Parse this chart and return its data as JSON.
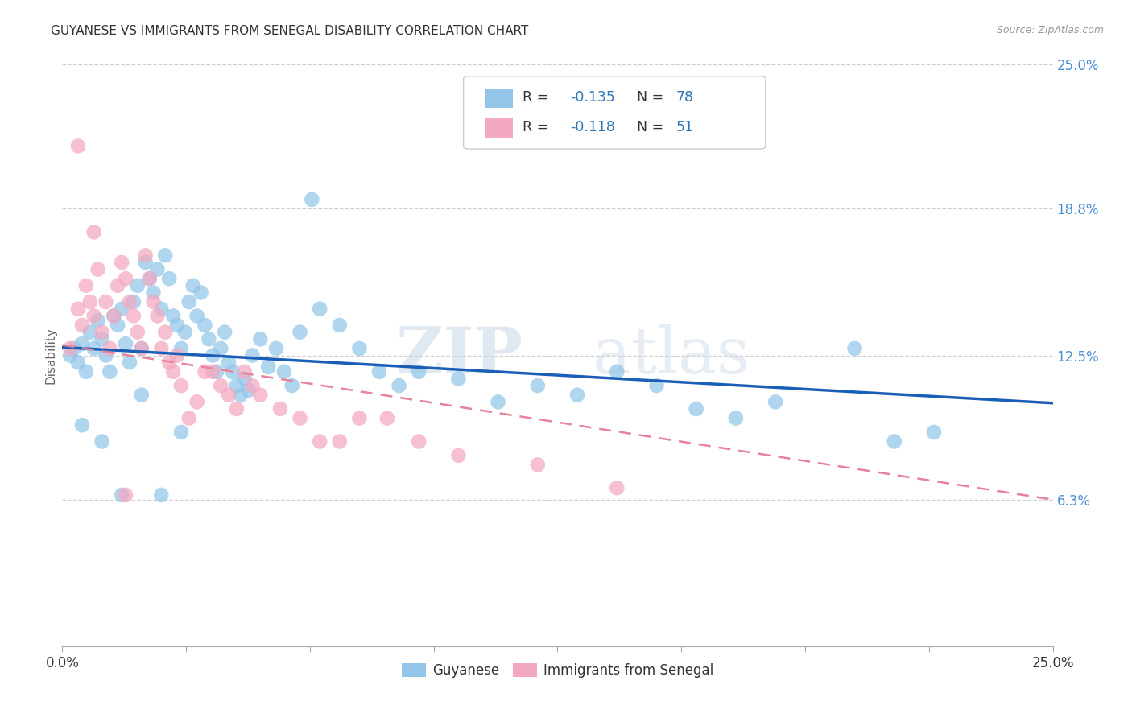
{
  "title": "GUYANESE VS IMMIGRANTS FROM SENEGAL DISABILITY CORRELATION CHART",
  "source": "Source: ZipAtlas.com",
  "ylabel": "Disability",
  "xlim": [
    0.0,
    0.25
  ],
  "ylim": [
    0.0,
    0.25
  ],
  "ytick_labels": [
    "6.3%",
    "12.5%",
    "18.8%",
    "25.0%"
  ],
  "ytick_values": [
    0.063,
    0.125,
    0.188,
    0.25
  ],
  "xtick_values": [
    0.0,
    0.03125,
    0.0625,
    0.09375,
    0.125,
    0.15625,
    0.1875,
    0.21875,
    0.25
  ],
  "xtick_labels_show": {
    "0.0": "0.0%",
    "0.25": "25.0%"
  },
  "legend_r1": "-0.135",
  "legend_n1": "78",
  "legend_r2": "-0.118",
  "legend_n2": "51",
  "blue_color": "#92C5E8",
  "pink_color": "#F4A8C0",
  "trend_blue": "#1A5EB8",
  "trend_pink": "#E8829A",
  "watermark_zip": "ZIP",
  "watermark_atlas": "atlas",
  "bg_color": "#FFFFFF",
  "guyanese_label": "Guyanese",
  "senegal_label": "Immigrants from Senegal",
  "blue_scatter_x": [
    0.002,
    0.003,
    0.004,
    0.005,
    0.006,
    0.007,
    0.008,
    0.009,
    0.01,
    0.011,
    0.012,
    0.013,
    0.014,
    0.015,
    0.016,
    0.017,
    0.018,
    0.019,
    0.02,
    0.021,
    0.022,
    0.023,
    0.024,
    0.025,
    0.026,
    0.027,
    0.028,
    0.029,
    0.03,
    0.031,
    0.032,
    0.033,
    0.034,
    0.035,
    0.036,
    0.037,
    0.038,
    0.039,
    0.04,
    0.041,
    0.042,
    0.043,
    0.044,
    0.045,
    0.046,
    0.047,
    0.048,
    0.05,
    0.052,
    0.054,
    0.056,
    0.058,
    0.06,
    0.063,
    0.065,
    0.07,
    0.075,
    0.08,
    0.085,
    0.09,
    0.1,
    0.11,
    0.12,
    0.13,
    0.14,
    0.15,
    0.16,
    0.17,
    0.18,
    0.2,
    0.21,
    0.22,
    0.005,
    0.01,
    0.015,
    0.02,
    0.025,
    0.03
  ],
  "blue_scatter_y": [
    0.125,
    0.128,
    0.122,
    0.13,
    0.118,
    0.135,
    0.128,
    0.14,
    0.132,
    0.125,
    0.118,
    0.142,
    0.138,
    0.145,
    0.13,
    0.122,
    0.148,
    0.155,
    0.128,
    0.165,
    0.158,
    0.152,
    0.162,
    0.145,
    0.168,
    0.158,
    0.142,
    0.138,
    0.128,
    0.135,
    0.148,
    0.155,
    0.142,
    0.152,
    0.138,
    0.132,
    0.125,
    0.118,
    0.128,
    0.135,
    0.122,
    0.118,
    0.112,
    0.108,
    0.115,
    0.11,
    0.125,
    0.132,
    0.12,
    0.128,
    0.118,
    0.112,
    0.135,
    0.192,
    0.145,
    0.138,
    0.128,
    0.118,
    0.112,
    0.118,
    0.115,
    0.105,
    0.112,
    0.108,
    0.118,
    0.112,
    0.102,
    0.098,
    0.105,
    0.128,
    0.088,
    0.092,
    0.095,
    0.088,
    0.065,
    0.108,
    0.065,
    0.092
  ],
  "pink_scatter_x": [
    0.002,
    0.004,
    0.005,
    0.006,
    0.007,
    0.008,
    0.009,
    0.01,
    0.011,
    0.012,
    0.013,
    0.014,
    0.015,
    0.016,
    0.017,
    0.018,
    0.019,
    0.02,
    0.021,
    0.022,
    0.023,
    0.024,
    0.025,
    0.026,
    0.027,
    0.028,
    0.029,
    0.03,
    0.032,
    0.034,
    0.036,
    0.038,
    0.04,
    0.042,
    0.044,
    0.046,
    0.048,
    0.05,
    0.055,
    0.06,
    0.065,
    0.07,
    0.075,
    0.082,
    0.09,
    0.1,
    0.12,
    0.14,
    0.004,
    0.008,
    0.016
  ],
  "pink_scatter_y": [
    0.128,
    0.145,
    0.138,
    0.155,
    0.148,
    0.142,
    0.162,
    0.135,
    0.148,
    0.128,
    0.142,
    0.155,
    0.165,
    0.158,
    0.148,
    0.142,
    0.135,
    0.128,
    0.168,
    0.158,
    0.148,
    0.142,
    0.128,
    0.135,
    0.122,
    0.118,
    0.125,
    0.112,
    0.098,
    0.105,
    0.118,
    0.118,
    0.112,
    0.108,
    0.102,
    0.118,
    0.112,
    0.108,
    0.102,
    0.098,
    0.088,
    0.088,
    0.098,
    0.098,
    0.088,
    0.082,
    0.078,
    0.068,
    0.215,
    0.178,
    0.065
  ],
  "blue_trend_start_y": 0.1285,
  "blue_trend_end_y": 0.1045,
  "pink_trend_start_y": 0.1295,
  "pink_trend_end_y": 0.063
}
